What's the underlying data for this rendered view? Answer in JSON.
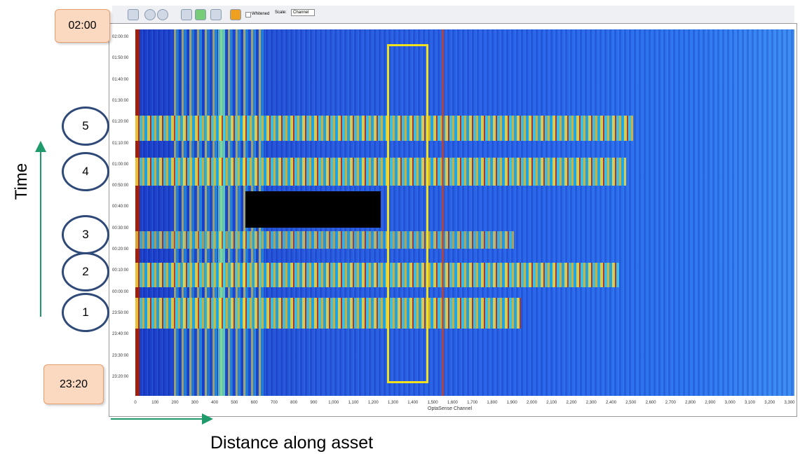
{
  "toolbar": {
    "whitened": "Whitened",
    "scale_label": "Scale:",
    "scale_value": "Channel"
  },
  "plot": {
    "y_axis_labels": [
      "02:00:00",
      "01:50:00",
      "01:40:00",
      "01:30:00",
      "01:20:00",
      "01:10:00",
      "01:00:00",
      "00:50:00",
      "00:40:00",
      "00:30:00",
      "00:20:00",
      "00:10:00",
      "00:00:00",
      "23:50:00",
      "23:40:00",
      "23:30:00",
      "23:20:00"
    ],
    "x_axis_labels": [
      "0",
      "100",
      "200",
      "300",
      "400",
      "500",
      "600",
      "700",
      "800",
      "900",
      "1,000",
      "1,100",
      "1,200",
      "1,300",
      "1,400",
      "1,500",
      "1,600",
      "1,700",
      "1,800",
      "1,900",
      "2,000",
      "2,100",
      "2,200",
      "2,300",
      "2,400",
      "2,500",
      "2,600",
      "2,700",
      "2,800",
      "2,900",
      "3,000",
      "3,100",
      "3,200",
      "3,300"
    ],
    "x_axis_title": "OptaSense Channel"
  },
  "annotations": {
    "top_time": "02:00",
    "bottom_time": "23:20",
    "events": [
      "5",
      "4",
      "3",
      "2",
      "1"
    ],
    "y_title": "Time",
    "x_title": "Distance along asset"
  }
}
